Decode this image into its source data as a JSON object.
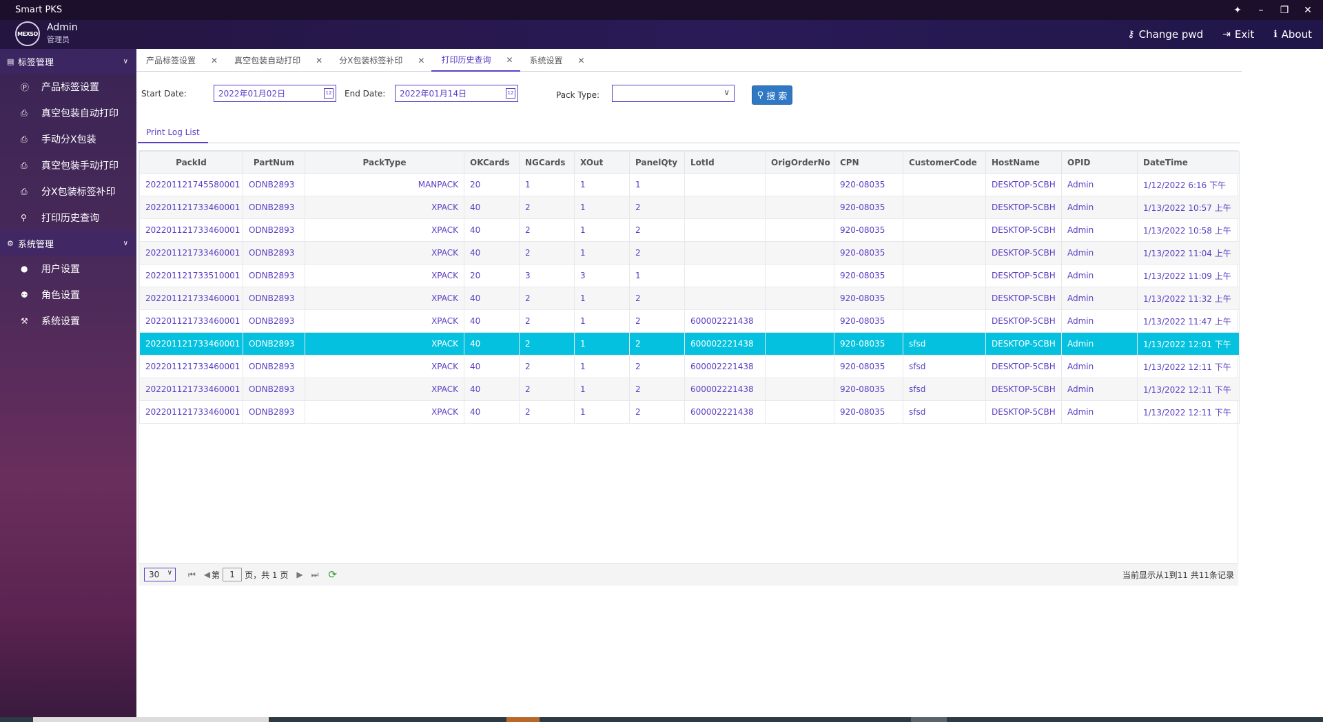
{
  "titlebar": {
    "title": "Smart PKS"
  },
  "header": {
    "logo_text": "MEXSO",
    "user_name": "Admin",
    "user_role": "管理员",
    "actions": {
      "change_pwd": "Change pwd",
      "exit": "Exit",
      "about": "About"
    }
  },
  "sidebar": {
    "group1": "标签管理",
    "group1_items": [
      "产品标签设置",
      "真空包装自动打印",
      "手动分X包装",
      "真空包装手动打印",
      "分X包装标签补印",
      "打印历史查询"
    ],
    "group2": "系统管理",
    "group2_items": [
      "用户设置",
      "角色设置",
      "系统设置"
    ]
  },
  "tabs": [
    "产品标签设置",
    "真空包装自动打印",
    "分X包装标签补印",
    "打印历史查询",
    "系统设置"
  ],
  "active_tab": "打印历史查询",
  "filters": {
    "start_label": "Start Date:",
    "start_value": "2022年01月02日",
    "end_label": "End Date:",
    "end_value": "2022年01月14日",
    "pack_label": "Pack Type:",
    "pack_value": "",
    "search_label": "搜 索"
  },
  "subtab": "Print Log List",
  "grid": {
    "columns": [
      "PackId",
      "PartNum",
      "PackType",
      "OKCards",
      "NGCards",
      "XOut",
      "PanelQty",
      "LotId",
      "OrigOrderNo",
      "CPN",
      "CustomerCode",
      "HostName",
      "OPID",
      "DateTime"
    ],
    "selected_row": 7,
    "rows": [
      [
        "202201121745580001",
        "ODNB2893",
        "MANPACK",
        "20",
        "1",
        "1",
        "1",
        "",
        "",
        "920-08035",
        "",
        "DESKTOP-5CBH",
        "Admin",
        "1/12/2022 6:16 下午"
      ],
      [
        "202201121733460001",
        "ODNB2893",
        "XPACK",
        "40",
        "2",
        "1",
        "2",
        "",
        "",
        "920-08035",
        "",
        "DESKTOP-5CBH",
        "Admin",
        "1/13/2022 10:57 上午"
      ],
      [
        "202201121733460001",
        "ODNB2893",
        "XPACK",
        "40",
        "2",
        "1",
        "2",
        "",
        "",
        "920-08035",
        "",
        "DESKTOP-5CBH",
        "Admin",
        "1/13/2022 10:58 上午"
      ],
      [
        "202201121733460001",
        "ODNB2893",
        "XPACK",
        "40",
        "2",
        "1",
        "2",
        "",
        "",
        "920-08035",
        "",
        "DESKTOP-5CBH",
        "Admin",
        "1/13/2022 11:04 上午"
      ],
      [
        "202201121733510001",
        "ODNB2893",
        "XPACK",
        "20",
        "3",
        "3",
        "1",
        "",
        "",
        "920-08035",
        "",
        "DESKTOP-5CBH",
        "Admin",
        "1/13/2022 11:09 上午"
      ],
      [
        "202201121733460001",
        "ODNB2893",
        "XPACK",
        "40",
        "2",
        "1",
        "2",
        "",
        "",
        "920-08035",
        "",
        "DESKTOP-5CBH",
        "Admin",
        "1/13/2022 11:32 上午"
      ],
      [
        "202201121733460001",
        "ODNB2893",
        "XPACK",
        "40",
        "2",
        "1",
        "2",
        "600002221438",
        "",
        "920-08035",
        "",
        "DESKTOP-5CBH",
        "Admin",
        "1/13/2022 11:47 上午"
      ],
      [
        "202201121733460001",
        "ODNB2893",
        "XPACK",
        "40",
        "2",
        "1",
        "2",
        "600002221438",
        "",
        "920-08035",
        "sfsd",
        "DESKTOP-5CBH",
        "Admin",
        "1/13/2022 12:01 下午"
      ],
      [
        "202201121733460001",
        "ODNB2893",
        "XPACK",
        "40",
        "2",
        "1",
        "2",
        "600002221438",
        "",
        "920-08035",
        "sfsd",
        "DESKTOP-5CBH",
        "Admin",
        "1/13/2022 12:11 下午"
      ],
      [
        "202201121733460001",
        "ODNB2893",
        "XPACK",
        "40",
        "2",
        "1",
        "2",
        "600002221438",
        "",
        "920-08035",
        "sfsd",
        "DESKTOP-5CBH",
        "Admin",
        "1/13/2022 12:11 下午"
      ],
      [
        "202201121733460001",
        "ODNB2893",
        "XPACK",
        "40",
        "2",
        "1",
        "2",
        "600002221438",
        "",
        "920-08035",
        "sfsd",
        "DESKTOP-5CBH",
        "Admin",
        "1/13/2022 12:11 下午"
      ]
    ]
  },
  "pager": {
    "page_size": "30",
    "page_prefix": "第",
    "page_number": "1",
    "page_suffix": "页，共 1 页",
    "info": "当前显示从1到11 共11条记录"
  },
  "colors": {
    "accent": "#5b3ec4",
    "selected_row": "#04c2df",
    "search_button": "#2f78c4"
  }
}
